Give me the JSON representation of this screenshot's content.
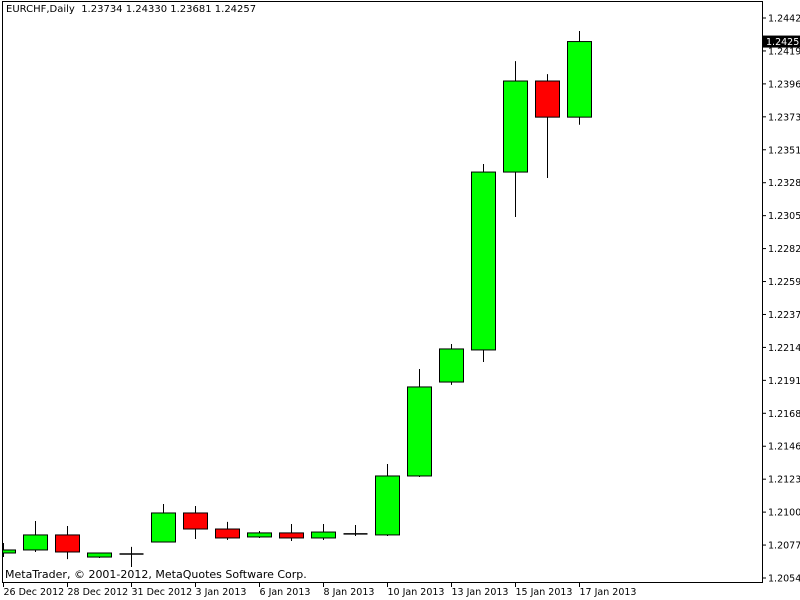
{
  "header": {
    "symbol": "EURCHF,Daily",
    "ohlc_text": "1.23734 1.24330 1.23681 1.24257"
  },
  "copyright": "MetaTrader, © 2001-2012, MetaQuotes Software Corp.",
  "colors": {
    "bull": "#00ff00",
    "bear": "#ff0000",
    "outline": "#000000",
    "background": "#ffffff",
    "price_tag_bg": "#000000",
    "price_tag_text": "#ffffff"
  },
  "chart_data": {
    "type": "candlestick",
    "title": "EURCHF,Daily",
    "current_price": "1.24257",
    "ylim": [
      1.20545,
      1.2442
    ],
    "y_ticks": [
      "1.24420",
      "1.24190",
      "1.23965",
      "1.23735",
      "1.23510",
      "1.23280",
      "1.23050",
      "1.22825",
      "1.22595",
      "1.22370",
      "1.22140",
      "1.21915",
      "1.21685",
      "1.21460",
      "1.21230",
      "1.21000",
      "1.20775",
      "1.20545"
    ],
    "x_tick_labels": [
      "26 Dec 2012",
      "28 Dec 2012",
      "31 Dec 2012",
      "3 Jan 2013",
      "6 Jan 2013",
      "8 Jan 2013",
      "10 Jan 2013",
      "13 Jan 2013",
      "15 Jan 2013",
      "17 Jan 2013"
    ],
    "grid": false,
    "candles": [
      {
        "o": 1.20718,
        "h": 1.20787,
        "l": 1.2069,
        "c": 1.20739
      },
      {
        "o": 1.20739,
        "h": 1.20939,
        "l": 1.20725,
        "c": 1.20843
      },
      {
        "o": 1.20843,
        "h": 1.20905,
        "l": 1.20676,
        "c": 1.20725
      },
      {
        "o": 1.2069,
        "h": 1.20718,
        "l": 1.20683,
        "c": 1.20718
      },
      {
        "o": 1.20711,
        "h": 1.2076,
        "l": 1.20621,
        "c": 1.20711
      },
      {
        "o": 1.20794,
        "h": 1.21057,
        "l": 1.20794,
        "c": 1.20995
      },
      {
        "o": 1.20995,
        "h": 1.21043,
        "l": 1.20815,
        "c": 1.20884
      },
      {
        "o": 1.20884,
        "h": 1.20933,
        "l": 1.20808,
        "c": 1.20822
      },
      {
        "o": 1.20829,
        "h": 1.2087,
        "l": 1.20822,
        "c": 1.20857
      },
      {
        "o": 1.20857,
        "h": 1.20919,
        "l": 1.20801,
        "c": 1.20822
      },
      {
        "o": 1.20822,
        "h": 1.20919,
        "l": 1.20808,
        "c": 1.20863
      },
      {
        "o": 1.2085,
        "h": 1.20912,
        "l": 1.20836,
        "c": 1.2085
      },
      {
        "o": 1.20843,
        "h": 1.21334,
        "l": 1.20836,
        "c": 1.21251
      },
      {
        "o": 1.21251,
        "h": 1.21991,
        "l": 1.21244,
        "c": 1.21867
      },
      {
        "o": 1.21901,
        "h": 1.22164,
        "l": 1.21881,
        "c": 1.2213
      },
      {
        "o": 1.22123,
        "h": 1.2341,
        "l": 1.2204,
        "c": 1.23354
      },
      {
        "o": 1.23354,
        "h": 1.24122,
        "l": 1.23043,
        "c": 1.23984
      },
      {
        "o": 1.23984,
        "h": 1.24032,
        "l": 1.23313,
        "c": 1.23734
      },
      {
        "o": 1.23734,
        "h": 1.2433,
        "l": 1.23681,
        "c": 1.24257
      }
    ]
  }
}
